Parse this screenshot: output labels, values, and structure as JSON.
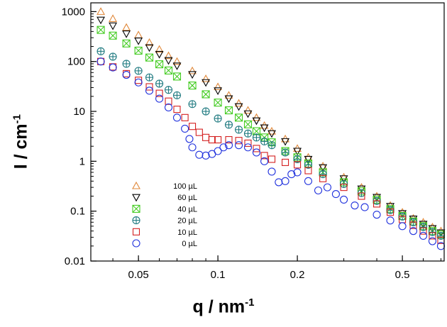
{
  "chart_data": {
    "type": "scatter",
    "title": "",
    "xlabel_base": "q / nm",
    "xlabel_exp": "-1",
    "ylabel_base": "I / cm",
    "ylabel_exp": "-1",
    "xscale": "log",
    "yscale": "log",
    "xlim": [
      0.033,
      0.72
    ],
    "ylim": [
      0.01,
      1500
    ],
    "x_ticks": [
      {
        "value": 0.05,
        "label": "0.05"
      },
      {
        "value": 0.1,
        "label": "0.1"
      },
      {
        "value": 0.2,
        "label": "0.2"
      },
      {
        "value": 0.5,
        "label": "0.5"
      }
    ],
    "y_ticks": [
      {
        "value": 1000,
        "label": "1000"
      },
      {
        "value": 100,
        "label": "100"
      },
      {
        "value": 10,
        "label": "10"
      },
      {
        "value": 1,
        "label": "1"
      },
      {
        "value": 0.1,
        "label": "0.1"
      },
      {
        "value": 0.01,
        "label": "0.01"
      }
    ],
    "legend_position": "lower-left",
    "series": [
      {
        "name": "100 µL",
        "marker": "triangle-up",
        "color": "#e0883a",
        "points": [
          [
            0.036,
            1000
          ],
          [
            0.04,
            720
          ],
          [
            0.045,
            480
          ],
          [
            0.05,
            340
          ],
          [
            0.055,
            240
          ],
          [
            0.06,
            175
          ],
          [
            0.065,
            130
          ],
          [
            0.07,
            100
          ],
          [
            0.08,
            65
          ],
          [
            0.09,
            45
          ],
          [
            0.1,
            31
          ],
          [
            0.11,
            21
          ],
          [
            0.12,
            14.5
          ],
          [
            0.13,
            10.5
          ],
          [
            0.14,
            7.5
          ],
          [
            0.15,
            5.2
          ],
          [
            0.16,
            4.0
          ],
          [
            0.18,
            2.8
          ],
          [
            0.2,
            1.8
          ],
          [
            0.22,
            1.2
          ],
          [
            0.25,
            0.8
          ],
          [
            0.3,
            0.48
          ],
          [
            0.35,
            0.3
          ],
          [
            0.4,
            0.2
          ],
          [
            0.45,
            0.13
          ],
          [
            0.5,
            0.095
          ],
          [
            0.55,
            0.072
          ],
          [
            0.6,
            0.06
          ],
          [
            0.65,
            0.048
          ],
          [
            0.7,
            0.04
          ]
        ]
      },
      {
        "name": "60 µL",
        "marker": "triangle-down",
        "color": "#000000",
        "points": [
          [
            0.036,
            680
          ],
          [
            0.04,
            520
          ],
          [
            0.045,
            360
          ],
          [
            0.05,
            260
          ],
          [
            0.055,
            190
          ],
          [
            0.06,
            140
          ],
          [
            0.065,
            105
          ],
          [
            0.07,
            82
          ],
          [
            0.08,
            55
          ],
          [
            0.09,
            38
          ],
          [
            0.1,
            26
          ],
          [
            0.11,
            18
          ],
          [
            0.12,
            12.5
          ],
          [
            0.13,
            9
          ],
          [
            0.14,
            6.5
          ],
          [
            0.15,
            4.7
          ],
          [
            0.16,
            3.6
          ],
          [
            0.18,
            2.5
          ],
          [
            0.2,
            1.6
          ],
          [
            0.22,
            1.1
          ],
          [
            0.25,
            0.75
          ],
          [
            0.3,
            0.45
          ],
          [
            0.35,
            0.28
          ],
          [
            0.4,
            0.19
          ],
          [
            0.45,
            0.125
          ],
          [
            0.5,
            0.09
          ],
          [
            0.55,
            0.07
          ],
          [
            0.6,
            0.055
          ],
          [
            0.65,
            0.045
          ],
          [
            0.7,
            0.037
          ]
        ]
      },
      {
        "name": "40 µL",
        "marker": "box-x",
        "color": "#44cc22",
        "points": [
          [
            0.036,
            430
          ],
          [
            0.04,
            330
          ],
          [
            0.045,
            230
          ],
          [
            0.05,
            165
          ],
          [
            0.055,
            120
          ],
          [
            0.06,
            88
          ],
          [
            0.065,
            66
          ],
          [
            0.07,
            50
          ],
          [
            0.08,
            33
          ],
          [
            0.09,
            22
          ],
          [
            0.1,
            15
          ],
          [
            0.11,
            10.5
          ],
          [
            0.12,
            7.5
          ],
          [
            0.13,
            5.5
          ],
          [
            0.14,
            4.0
          ],
          [
            0.15,
            3.0
          ],
          [
            0.16,
            2.4
          ],
          [
            0.18,
            1.6
          ],
          [
            0.2,
            1.2
          ],
          [
            0.22,
            0.9
          ],
          [
            0.25,
            0.6
          ],
          [
            0.3,
            0.38
          ],
          [
            0.35,
            0.25
          ],
          [
            0.4,
            0.17
          ],
          [
            0.45,
            0.11
          ],
          [
            0.5,
            0.08
          ],
          [
            0.55,
            0.062
          ],
          [
            0.6,
            0.05
          ],
          [
            0.65,
            0.04
          ],
          [
            0.7,
            0.034
          ]
        ]
      },
      {
        "name": "20 µL",
        "marker": "circle-plus",
        "color": "#1f7a80",
        "points": [
          [
            0.036,
            160
          ],
          [
            0.04,
            125
          ],
          [
            0.045,
            90
          ],
          [
            0.05,
            65
          ],
          [
            0.055,
            48
          ],
          [
            0.06,
            36
          ],
          [
            0.065,
            27
          ],
          [
            0.07,
            21
          ],
          [
            0.08,
            14
          ],
          [
            0.09,
            10
          ],
          [
            0.1,
            7.2
          ],
          [
            0.11,
            5.4
          ],
          [
            0.12,
            4.3
          ],
          [
            0.13,
            3.6
          ],
          [
            0.14,
            3.0
          ],
          [
            0.15,
            2.5
          ],
          [
            0.16,
            2.1
          ],
          [
            0.18,
            1.5
          ],
          [
            0.2,
            1.1
          ],
          [
            0.22,
            0.85
          ],
          [
            0.25,
            0.55
          ],
          [
            0.3,
            0.35
          ],
          [
            0.35,
            0.23
          ],
          [
            0.4,
            0.16
          ],
          [
            0.45,
            0.105
          ],
          [
            0.5,
            0.078
          ],
          [
            0.55,
            0.06
          ],
          [
            0.6,
            0.048
          ],
          [
            0.65,
            0.038
          ],
          [
            0.7,
            0.032
          ]
        ]
      },
      {
        "name": "10 µL",
        "marker": "square",
        "color": "#d42020",
        "points": [
          [
            0.036,
            100
          ],
          [
            0.04,
            78
          ],
          [
            0.045,
            57
          ],
          [
            0.05,
            42
          ],
          [
            0.055,
            31
          ],
          [
            0.06,
            23
          ],
          [
            0.065,
            16
          ],
          [
            0.07,
            11
          ],
          [
            0.075,
            7.5
          ],
          [
            0.08,
            5.0
          ],
          [
            0.085,
            3.8
          ],
          [
            0.09,
            3.0
          ],
          [
            0.095,
            2.7
          ],
          [
            0.1,
            2.7
          ],
          [
            0.11,
            2.7
          ],
          [
            0.12,
            2.6
          ],
          [
            0.13,
            2.3
          ],
          [
            0.14,
            1.8
          ],
          [
            0.15,
            1.3
          ],
          [
            0.16,
            1.1
          ],
          [
            0.18,
            0.95
          ],
          [
            0.2,
            0.85
          ],
          [
            0.22,
            0.65
          ],
          [
            0.25,
            0.45
          ],
          [
            0.3,
            0.3
          ],
          [
            0.35,
            0.2
          ],
          [
            0.4,
            0.14
          ],
          [
            0.45,
            0.095
          ],
          [
            0.5,
            0.068
          ],
          [
            0.55,
            0.052
          ],
          [
            0.6,
            0.04
          ],
          [
            0.65,
            0.032
          ],
          [
            0.7,
            0.026
          ]
        ]
      },
      {
        "name": "0 µL",
        "marker": "circle",
        "color": "#2233dd",
        "points": [
          [
            0.036,
            100
          ],
          [
            0.04,
            76
          ],
          [
            0.045,
            54
          ],
          [
            0.05,
            38
          ],
          [
            0.055,
            26
          ],
          [
            0.06,
            18
          ],
          [
            0.065,
            12
          ],
          [
            0.07,
            7.5
          ],
          [
            0.075,
            4.5
          ],
          [
            0.078,
            2.8
          ],
          [
            0.08,
            1.9
          ],
          [
            0.085,
            1.35
          ],
          [
            0.09,
            1.3
          ],
          [
            0.095,
            1.4
          ],
          [
            0.1,
            1.6
          ],
          [
            0.105,
            1.9
          ],
          [
            0.11,
            2.1
          ],
          [
            0.12,
            2.1
          ],
          [
            0.13,
            1.9
          ],
          [
            0.14,
            1.5
          ],
          [
            0.15,
            1.0
          ],
          [
            0.16,
            0.62
          ],
          [
            0.17,
            0.38
          ],
          [
            0.18,
            0.4
          ],
          [
            0.19,
            0.55
          ],
          [
            0.2,
            0.6
          ],
          [
            0.22,
            0.4
          ],
          [
            0.24,
            0.26
          ],
          [
            0.26,
            0.3
          ],
          [
            0.28,
            0.22
          ],
          [
            0.3,
            0.17
          ],
          [
            0.33,
            0.13
          ],
          [
            0.36,
            0.12
          ],
          [
            0.4,
            0.085
          ],
          [
            0.45,
            0.065
          ],
          [
            0.5,
            0.05
          ],
          [
            0.55,
            0.04
          ],
          [
            0.6,
            0.032
          ],
          [
            0.65,
            0.025
          ],
          [
            0.7,
            0.02
          ]
        ]
      }
    ]
  }
}
